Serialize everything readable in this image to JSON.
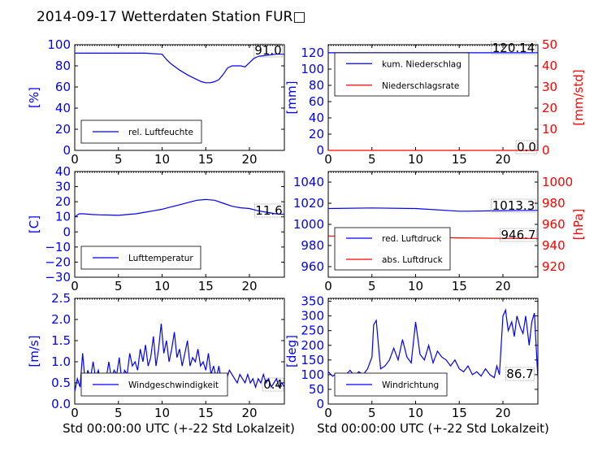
{
  "title": "2014-09-17 Wetterdaten Station FUR□",
  "xlabel": "Std 00:00:00 UTC (+-22 Std Lokalzeit)",
  "colors": {
    "blue": "#0000ff",
    "red": "#ff0000",
    "axis": "#000000"
  },
  "chart_data": [
    {
      "id": "humidity",
      "type": "line",
      "ylabel": "[%]",
      "xlim": [
        0,
        24
      ],
      "ylim": [
        0,
        100
      ],
      "xticks": [
        0,
        5,
        10,
        15,
        20
      ],
      "yticks": [
        0,
        20,
        40,
        60,
        80,
        100
      ],
      "current_label": "91.0",
      "legend": [
        "rel. Luftfeuchte"
      ],
      "series": [
        {
          "name": "rel. Luftfeuchte",
          "color": "#0000ff",
          "x": [
            0,
            2,
            4,
            6,
            8,
            10,
            10.5,
            11,
            12,
            13,
            14,
            14.5,
            15,
            15.5,
            16,
            16.5,
            17,
            17.5,
            18,
            19,
            19.5,
            20,
            20.5,
            21,
            22,
            23,
            24
          ],
          "y": [
            92,
            92,
            92,
            92,
            92,
            91,
            86,
            82,
            76,
            71,
            67,
            65,
            64,
            64,
            65,
            67,
            72,
            78,
            80,
            80,
            79,
            83,
            87,
            89,
            90,
            91,
            91
          ]
        }
      ]
    },
    {
      "id": "precip",
      "type": "line",
      "ylabel": "[mm]",
      "ylabel_right": "[mm/std]",
      "xlim": [
        0,
        24
      ],
      "ylim": [
        0,
        130
      ],
      "ylim_right": [
        0,
        50
      ],
      "xticks": [
        0,
        5,
        10,
        15,
        20
      ],
      "yticks": [
        0,
        20,
        40,
        60,
        80,
        100,
        120
      ],
      "yticks_right": [
        0,
        10,
        20,
        30,
        40,
        50
      ],
      "current_label": "120.14",
      "current_label_right": "0.0",
      "legend": [
        "kum. Niederschlag",
        "Niederschlagsrate"
      ],
      "series": [
        {
          "name": "kum. Niederschlag",
          "color": "#0000ff",
          "axis": "left",
          "x": [
            0,
            24
          ],
          "y": [
            120.1,
            120.14
          ]
        },
        {
          "name": "Niederschlagsrate",
          "color": "#ff0000",
          "axis": "right",
          "x": [
            0,
            24
          ],
          "y": [
            0,
            0
          ]
        }
      ]
    },
    {
      "id": "temperature",
      "type": "line",
      "ylabel": "[C]",
      "xlim": [
        0,
        24
      ],
      "ylim": [
        -30,
        40
      ],
      "xticks": [
        0,
        5,
        10,
        15,
        20
      ],
      "yticks": [
        -30,
        -20,
        -10,
        0,
        10,
        20,
        30,
        40
      ],
      "current_label": "11.6",
      "legend": [
        "Lufttemperatur"
      ],
      "series": [
        {
          "name": "Lufttemperatur",
          "color": "#0000ff",
          "x": [
            0,
            0.5,
            1,
            2,
            3,
            4,
            5,
            6,
            7,
            8,
            9,
            10,
            11,
            12,
            13,
            14,
            15,
            16,
            17,
            18,
            19,
            20,
            21,
            22,
            23,
            24
          ],
          "y": [
            10,
            12,
            12,
            11.5,
            11.3,
            11.2,
            11,
            11.5,
            12,
            13,
            14,
            15,
            16.5,
            18,
            19.5,
            21,
            21.5,
            21,
            19,
            17,
            16,
            15.5,
            14,
            13,
            12,
            11.6
          ]
        }
      ]
    },
    {
      "id": "pressure",
      "type": "line",
      "ylabel_right": "[hPa]",
      "xlim": [
        0,
        24
      ],
      "ylim": [
        950,
        1050
      ],
      "ylim_right": [
        910,
        1010
      ],
      "xticks": [
        0,
        5,
        10,
        15,
        20
      ],
      "yticks": [
        960,
        980,
        1000,
        1020,
        1040
      ],
      "yticks_right": [
        920,
        940,
        960,
        980,
        1000
      ],
      "current_label": "1013.3",
      "current_label_right": "946.7",
      "legend": [
        "red. Luftdruck",
        "abs. Luftdruck"
      ],
      "series": [
        {
          "name": "red. Luftdruck",
          "color": "#0000ff",
          "axis": "left",
          "x": [
            0,
            5,
            10,
            15,
            16,
            20,
            24
          ],
          "y": [
            1015,
            1015.5,
            1015,
            1012.5,
            1012.5,
            1013,
            1013.3
          ]
        },
        {
          "name": "abs. Luftdruck",
          "color": "#ff0000",
          "axis": "right",
          "x": [
            0,
            5,
            10,
            15,
            20,
            24
          ],
          "y": [
            949,
            948.5,
            948,
            947.2,
            946.8,
            946.7
          ]
        }
      ]
    },
    {
      "id": "wind",
      "type": "line",
      "ylabel": "[m/s]",
      "xlim": [
        0,
        24
      ],
      "ylim": [
        0,
        2.5
      ],
      "xticks": [
        0,
        5,
        10,
        15,
        20
      ],
      "yticks": [
        0.0,
        0.5,
        1.0,
        1.5,
        2.0,
        2.5
      ],
      "ytick_labels": [
        "0.0",
        "0.5",
        "1.0",
        "1.5",
        "2.0",
        "2.5"
      ],
      "current_label": "0.4",
      "legend": [
        "Windgeschwindigkeit"
      ],
      "series": [
        {
          "name": "Windgeschwindigkeit",
          "color": "#0000ff",
          "x": [
            0,
            0.3,
            0.6,
            0.9,
            1.2,
            1.5,
            1.8,
            2.1,
            2.4,
            2.7,
            3,
            3.3,
            3.6,
            3.9,
            4.2,
            4.5,
            4.8,
            5.1,
            5.4,
            5.7,
            6,
            6.3,
            6.6,
            6.9,
            7.2,
            7.5,
            7.8,
            8.1,
            8.4,
            8.7,
            9,
            9.3,
            9.6,
            9.9,
            10.2,
            10.5,
            10.8,
            11.1,
            11.4,
            11.7,
            12,
            12.3,
            12.6,
            12.9,
            13.2,
            13.5,
            13.8,
            14.1,
            14.4,
            14.7,
            15,
            15.3,
            15.6,
            15.9,
            16.2,
            16.5,
            16.8,
            17.1,
            17.4,
            17.7,
            18,
            18.3,
            18.6,
            18.9,
            19.2,
            19.5,
            19.8,
            20.1,
            20.4,
            20.7,
            21,
            21.3,
            21.6,
            21.9,
            22.2,
            22.5,
            22.8,
            23.1,
            23.4,
            23.7,
            24
          ],
          "y": [
            0.3,
            0.6,
            0.4,
            1.2,
            0.5,
            0.8,
            0.6,
            1.0,
            0.6,
            0.8,
            0.5,
            0.7,
            0.6,
            1.0,
            0.6,
            0.8,
            0.7,
            1.1,
            0.5,
            0.8,
            0.7,
            1.2,
            0.9,
            1.0,
            0.8,
            1.3,
            1.0,
            1.4,
            0.9,
            1.1,
            1.6,
            0.9,
            1.3,
            1.9,
            1.2,
            1.5,
            1.0,
            1.3,
            1.7,
            1.1,
            1.3,
            0.9,
            1.2,
            1.5,
            0.9,
            1.1,
            1.0,
            1.3,
            0.9,
            1.0,
            0.8,
            1.2,
            0.7,
            0.9,
            0.6,
            0.9,
            0.5,
            0.7,
            0.6,
            0.8,
            0.7,
            0.6,
            0.5,
            0.7,
            0.6,
            0.5,
            0.7,
            0.5,
            0.6,
            0.4,
            0.6,
            0.5,
            0.7,
            0.5,
            0.6,
            0.4,
            0.5,
            0.6,
            0.4,
            0.5,
            0.4
          ]
        }
      ]
    },
    {
      "id": "winddir",
      "type": "line",
      "ylabel": "[deg]",
      "xlim": [
        0,
        24
      ],
      "ylim": [
        0,
        360
      ],
      "xticks": [
        0,
        5,
        10,
        15,
        20
      ],
      "yticks": [
        0,
        50,
        100,
        150,
        200,
        250,
        300,
        350
      ],
      "current_label": "86.7",
      "legend": [
        "Windrichtung"
      ],
      "series": [
        {
          "name": "Windrichtung",
          "color": "#0000ff",
          "x": [
            0,
            0.5,
            1,
            1.5,
            2,
            2.5,
            3,
            3.5,
            4,
            4.5,
            5,
            5.2,
            5.5,
            5.8,
            6,
            6.5,
            7,
            7.5,
            8,
            8.5,
            9,
            9.5,
            10,
            10.5,
            11,
            11.5,
            12,
            12.5,
            13,
            13.5,
            14,
            14.5,
            15,
            15.5,
            16,
            16.5,
            17,
            17.5,
            18,
            18.5,
            19,
            19.3,
            19.6,
            20,
            20.3,
            20.6,
            21,
            21.3,
            21.6,
            22,
            22.3,
            22.6,
            23,
            23.3,
            23.6,
            24
          ],
          "y": [
            110,
            95,
            105,
            90,
            100,
            115,
            95,
            110,
            100,
            120,
            160,
            270,
            285,
            180,
            120,
            130,
            150,
            190,
            150,
            220,
            160,
            140,
            280,
            170,
            150,
            200,
            140,
            180,
            160,
            150,
            130,
            150,
            120,
            110,
            130,
            100,
            110,
            95,
            120,
            100,
            90,
            130,
            100,
            300,
            320,
            250,
            280,
            230,
            300,
            260,
            240,
            300,
            200,
            280,
            310,
            87
          ]
        }
      ]
    }
  ]
}
